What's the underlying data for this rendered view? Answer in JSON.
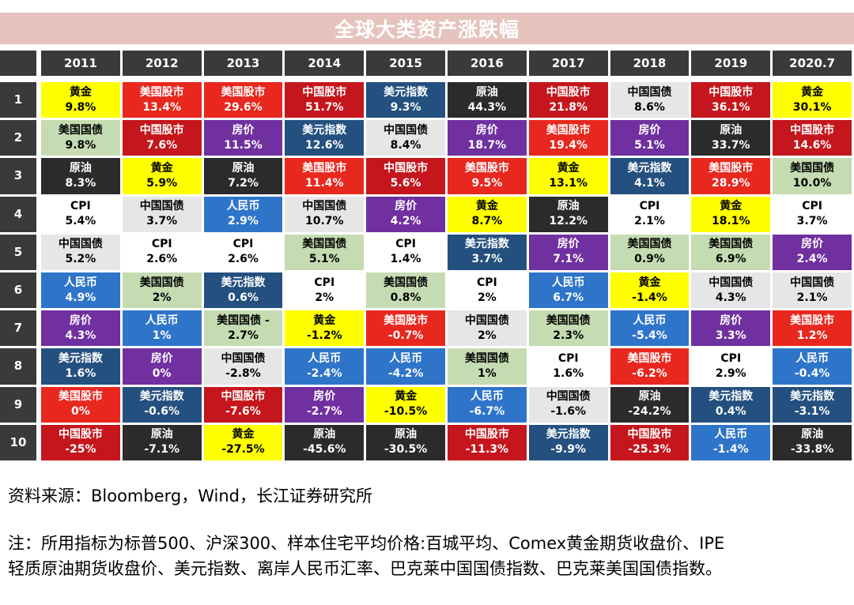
{
  "title": "全球大类资产涨跌幅",
  "source": "资料来源：Bloomberg，Wind，长江证券研究所",
  "note_line1": "注：所用指标为标普500、沪深300、样本住宅平均价格:百城平均、Comex黄金期货收盘价、IPE",
  "note_line2": "轻质原油期货收盘价、美元指数、离岸人民币汇率、巴克莱中国国债指数、巴克莱美国国债指数。",
  "chart_data": {
    "type": "table",
    "title": "全球大类资产涨跌幅",
    "years": [
      "2011",
      "2012",
      "2013",
      "2014",
      "2015",
      "2016",
      "2017",
      "2018",
      "2019",
      "2020.7"
    ],
    "ranks": [
      "1",
      "2",
      "3",
      "4",
      "5",
      "6",
      "7",
      "8",
      "9",
      "10"
    ],
    "asset_colors": {
      "黄金": {
        "bg": "#ffff00",
        "fg": "#000000"
      },
      "美国股市": {
        "bg": "#e8281e",
        "fg": "#ffffff"
      },
      "中国股市": {
        "bg": "#c4161c",
        "fg": "#ffffff"
      },
      "美元指数": {
        "bg": "#24507f",
        "fg": "#ffffff"
      },
      "原油": {
        "bg": "#2b2b2b",
        "fg": "#ffffff"
      },
      "中国国债": {
        "bg": "#e6e6e6",
        "fg": "#000000"
      },
      "美国国债": {
        "bg": "#c5dcb2",
        "fg": "#000000"
      },
      "房价": {
        "bg": "#7030a0",
        "fg": "#ffffff"
      },
      "CPI": {
        "bg": "#ffffff",
        "fg": "#000000"
      },
      "人民币": {
        "bg": "#2e75c9",
        "fg": "#ffffff"
      }
    },
    "columns": [
      [
        [
          "黄金",
          "9.8%"
        ],
        [
          "美国国债",
          "9.8%"
        ],
        [
          "原油",
          "8.3%"
        ],
        [
          "CPI",
          "5.4%"
        ],
        [
          "中国国债",
          "5.2%"
        ],
        [
          "人民币",
          "4.9%"
        ],
        [
          "房价",
          "4.3%"
        ],
        [
          "美元指数",
          "1.6%"
        ],
        [
          "美国股市",
          "0%"
        ],
        [
          "中国股市",
          "-25%"
        ]
      ],
      [
        [
          "美国股市",
          "13.4%"
        ],
        [
          "中国股市",
          "7.6%"
        ],
        [
          "黄金",
          "5.9%"
        ],
        [
          "中国国债",
          "3.7%"
        ],
        [
          "CPI",
          "2.6%"
        ],
        [
          "美国国债",
          "2%"
        ],
        [
          "人民币",
          "1%"
        ],
        [
          "房价",
          "0%"
        ],
        [
          "美元指数",
          "-0.6%"
        ],
        [
          "原油",
          "-7.1%"
        ]
      ],
      [
        [
          "美国股市",
          "29.6%"
        ],
        [
          "房价",
          "11.5%"
        ],
        [
          "原油",
          "7.2%"
        ],
        [
          "人民币",
          "2.9%"
        ],
        [
          "CPI",
          "2.6%"
        ],
        [
          "美元指数",
          "0.6%"
        ],
        [
          "美国国债 -",
          "2.7%"
        ],
        [
          "中国国债",
          "-2.8%"
        ],
        [
          "中国股市",
          "-7.6%"
        ],
        [
          "黄金",
          "-27.5%"
        ]
      ],
      [
        [
          "中国股市",
          "51.7%"
        ],
        [
          "美元指数",
          "12.6%"
        ],
        [
          "美国股市",
          "11.4%"
        ],
        [
          "中国国债",
          "10.7%"
        ],
        [
          "美国国债",
          "5.1%"
        ],
        [
          "CPI",
          "2%"
        ],
        [
          "黄金",
          "-1.2%"
        ],
        [
          "人民币",
          "-2.4%"
        ],
        [
          "房价",
          "-2.7%"
        ],
        [
          "原油",
          "-45.6%"
        ]
      ],
      [
        [
          "美元指数",
          "9.3%"
        ],
        [
          "中国国债",
          "8.4%"
        ],
        [
          "中国股市",
          "5.6%"
        ],
        [
          "房价",
          "4.2%"
        ],
        [
          "CPI",
          "1.4%"
        ],
        [
          "美国国债",
          "0.8%"
        ],
        [
          "美国股市",
          "-0.7%"
        ],
        [
          "人民币",
          "-4.2%"
        ],
        [
          "黄金",
          "-10.5%"
        ],
        [
          "原油",
          "-30.5%"
        ]
      ],
      [
        [
          "原油",
          "44.3%"
        ],
        [
          "房价",
          "18.7%"
        ],
        [
          "美国股市",
          "9.5%"
        ],
        [
          "黄金",
          "8.7%"
        ],
        [
          "美元指数",
          "3.7%"
        ],
        [
          "CPI",
          "2%"
        ],
        [
          "中国国债",
          "2%"
        ],
        [
          "美国国债",
          "1%"
        ],
        [
          "人民币",
          "-6.7%"
        ],
        [
          "中国股市",
          "-11.3%"
        ]
      ],
      [
        [
          "中国股市",
          "21.8%"
        ],
        [
          "美国股市",
          "19.4%"
        ],
        [
          "黄金",
          "13.1%"
        ],
        [
          "原油",
          "12.2%"
        ],
        [
          "房价",
          "7.1%"
        ],
        [
          "人民币",
          "6.7%"
        ],
        [
          "美国国债",
          "2.3%"
        ],
        [
          "CPI",
          "1.6%"
        ],
        [
          "中国国债",
          "-1.6%"
        ],
        [
          "美元指数",
          "-9.9%"
        ]
      ],
      [
        [
          "中国国债",
          "8.6%"
        ],
        [
          "房价",
          "5.1%"
        ],
        [
          "美元指数",
          "4.1%"
        ],
        [
          "CPI",
          "2.1%"
        ],
        [
          "美国国债",
          "0.9%"
        ],
        [
          "黄金",
          "-1.4%"
        ],
        [
          "人民币",
          "-5.4%"
        ],
        [
          "美国股市",
          "-6.2%"
        ],
        [
          "原油",
          "-24.2%"
        ],
        [
          "中国股市",
          "-25.3%"
        ]
      ],
      [
        [
          "中国股市",
          "36.1%"
        ],
        [
          "原油",
          "33.7%"
        ],
        [
          "美国股市",
          "28.9%"
        ],
        [
          "黄金",
          "18.1%"
        ],
        [
          "美国国债",
          "6.9%"
        ],
        [
          "中国国债",
          "4.3%"
        ],
        [
          "房价",
          "3.3%"
        ],
        [
          "CPI",
          "2.9%"
        ],
        [
          "美元指数",
          "0.4%"
        ],
        [
          "人民币",
          "-1.4%"
        ]
      ],
      [
        [
          "黄金",
          "30.1%"
        ],
        [
          "中国股市",
          "14.6%"
        ],
        [
          "美国国债",
          "10.0%"
        ],
        [
          "CPI",
          "3.7%"
        ],
        [
          "房价",
          "2.4%"
        ],
        [
          "中国国债",
          "2.1%"
        ],
        [
          "美国股市",
          "1.2%"
        ],
        [
          "人民币",
          "-0.4%"
        ],
        [
          "美元指数",
          "-3.1%"
        ],
        [
          "原油",
          "-33.8%"
        ]
      ]
    ]
  }
}
